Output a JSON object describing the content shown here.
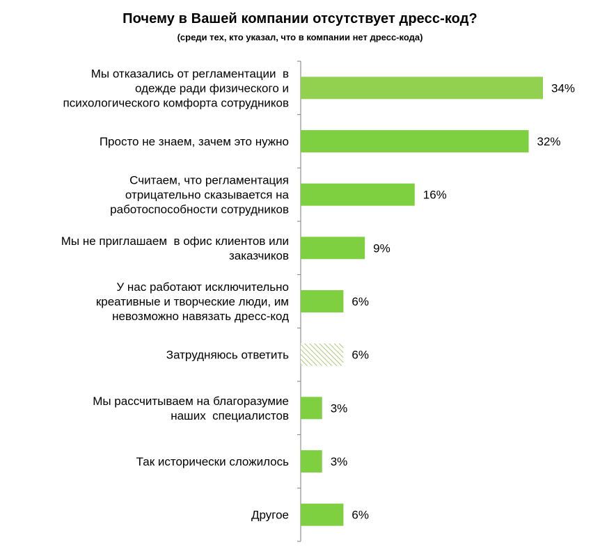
{
  "chart_data": {
    "type": "bar",
    "orientation": "horizontal",
    "title": "Почему в Вашей компании отсутствует  дресс-код?",
    "subtitle": "(среди тех, кто указал, что в компании нет дресс-кода)",
    "categories": [
      [
        "Мы отказались от регламентации  в",
        "одежде ради физического и",
        "психологического комфорта сотрудников"
      ],
      [
        "Просто не знаем, зачем это нужно"
      ],
      [
        "Считаем, что регламентация",
        "отрицательно сказывается на",
        "работоспособности сотрудников"
      ],
      [
        "Мы не приглашаем  в офис клиентов или",
        "заказчиков"
      ],
      [
        "У нас работают исключительно",
        "креативные и творческие люди, им",
        "невозможно навязать дресс-код"
      ],
      [
        "Затрудняюсь ответить"
      ],
      [
        "Мы рассчитываем на благоразумие",
        "наших  специалистов"
      ],
      [
        "Так исторически сложилось"
      ],
      [
        "Другое"
      ]
    ],
    "values": [
      34,
      32,
      16,
      9,
      6,
      6,
      3,
      3,
      6
    ],
    "value_labels": [
      "34%",
      "32%",
      "16%",
      "9%",
      "6%",
      "6%",
      "3%",
      "3%",
      "6%"
    ],
    "hatched": [
      false,
      false,
      false,
      false,
      false,
      true,
      false,
      false,
      false
    ],
    "xlim": [
      0,
      40
    ],
    "grid": false,
    "legend": "none",
    "colors": {
      "bar": "#7ed040",
      "bar_first": "#92d050",
      "hatch": "#9bbb59",
      "axis": "#7f7f7f"
    }
  }
}
